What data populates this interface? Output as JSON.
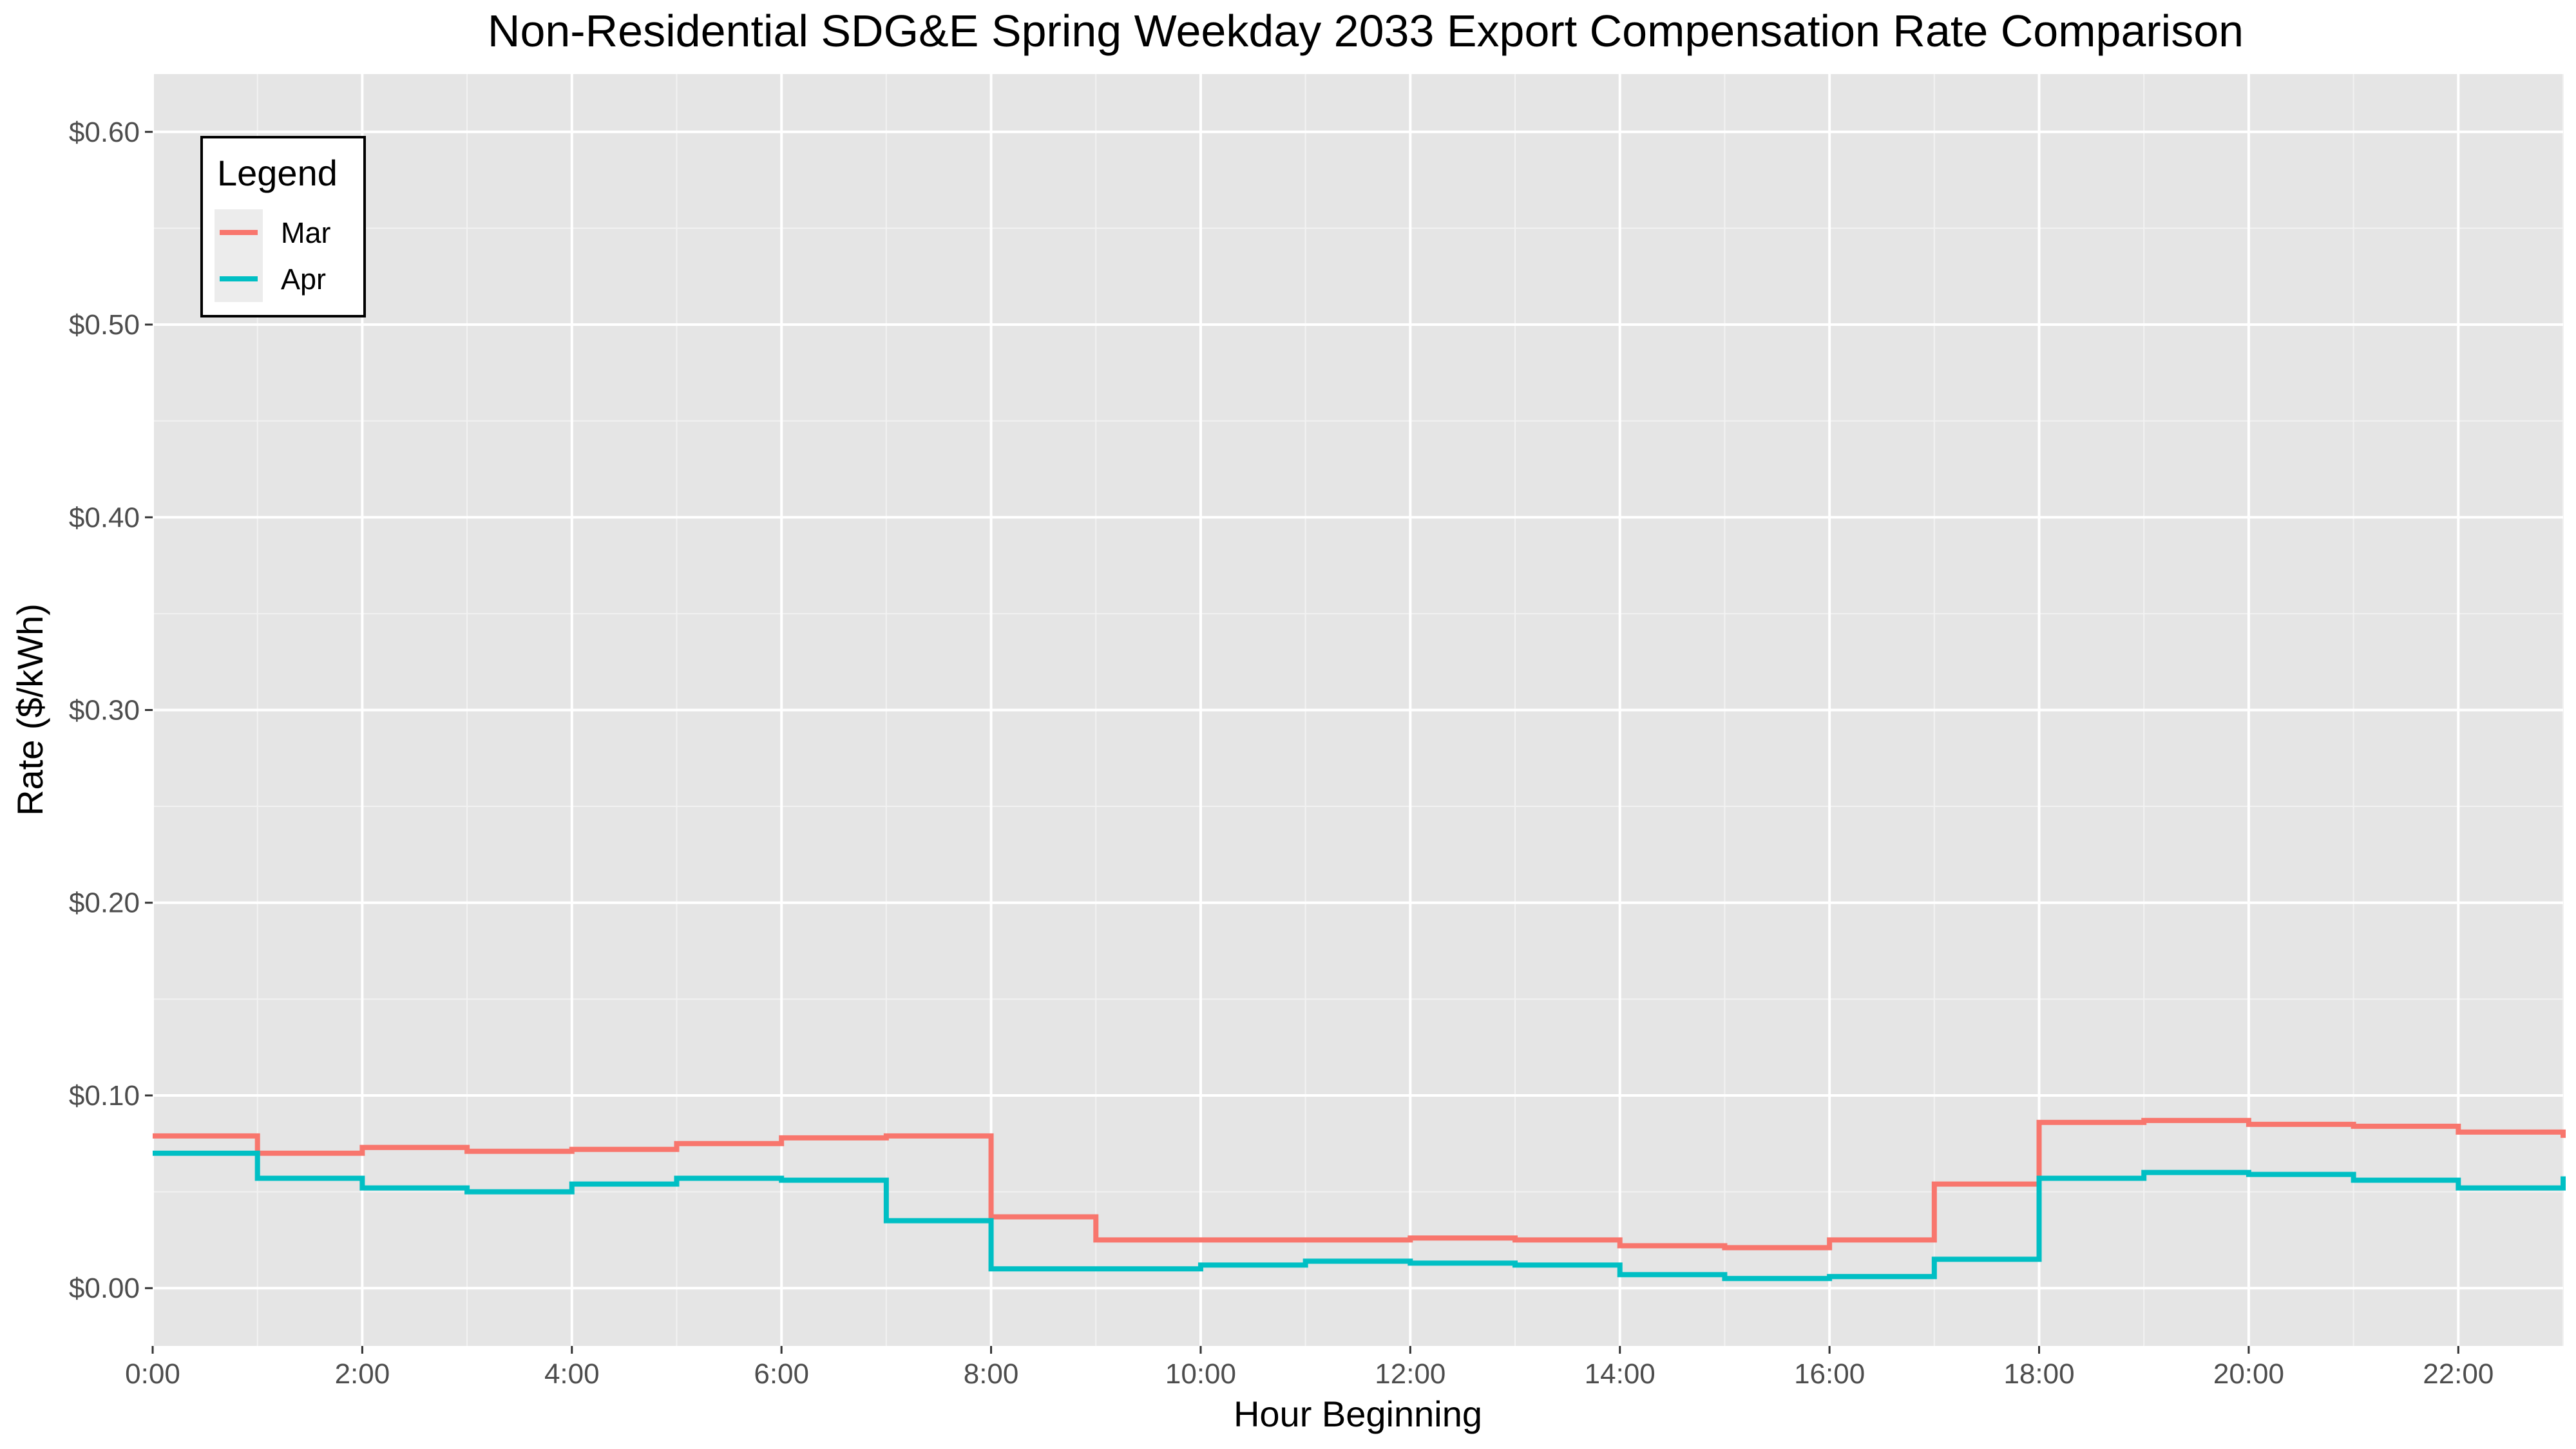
{
  "chart_data": {
    "type": "line",
    "step": true,
    "title": "Non-Residential SDG&E Spring Weekday 2033 Export Compensation Rate Comparison",
    "xlabel": "Hour Beginning",
    "ylabel": "Rate ($/kWh)",
    "xlim": [
      0,
      23
    ],
    "ylim": [
      -0.03,
      0.63
    ],
    "grid": true,
    "background": "#e5e5e5",
    "legend": {
      "title": "Legend",
      "position": "top-left"
    },
    "x_ticks": [
      0,
      2,
      4,
      6,
      8,
      10,
      12,
      14,
      16,
      18,
      20,
      22
    ],
    "x_tick_labels": [
      "0:00",
      "2:00",
      "4:00",
      "6:00",
      "8:00",
      "10:00",
      "12:00",
      "14:00",
      "16:00",
      "18:00",
      "20:00",
      "22:00"
    ],
    "y_ticks": [
      0,
      0.1,
      0.2,
      0.3,
      0.4,
      0.5,
      0.6
    ],
    "y_tick_labels": [
      "$0.00",
      "$0.10",
      "$0.20",
      "$0.30",
      "$0.40",
      "$0.50",
      "$0.60"
    ],
    "x": [
      0,
      1,
      2,
      3,
      4,
      5,
      6,
      7,
      8,
      9,
      10,
      11,
      12,
      13,
      14,
      15,
      16,
      17,
      18,
      19,
      20,
      21,
      22,
      23
    ],
    "series": [
      {
        "name": "Mar",
        "color": "#f8766d",
        "values": [
          0.079,
          0.07,
          0.073,
          0.071,
          0.072,
          0.075,
          0.078,
          0.079,
          0.037,
          0.025,
          0.025,
          0.025,
          0.026,
          0.025,
          0.022,
          0.021,
          0.025,
          0.054,
          0.086,
          0.087,
          0.085,
          0.084,
          0.081,
          0.078
        ]
      },
      {
        "name": "Apr",
        "color": "#00bfc4",
        "values": [
          0.07,
          0.057,
          0.052,
          0.05,
          0.054,
          0.057,
          0.056,
          0.035,
          0.01,
          0.01,
          0.012,
          0.014,
          0.013,
          0.012,
          0.007,
          0.005,
          0.006,
          0.015,
          0.057,
          0.06,
          0.059,
          0.056,
          0.052,
          0.058
        ]
      }
    ]
  }
}
